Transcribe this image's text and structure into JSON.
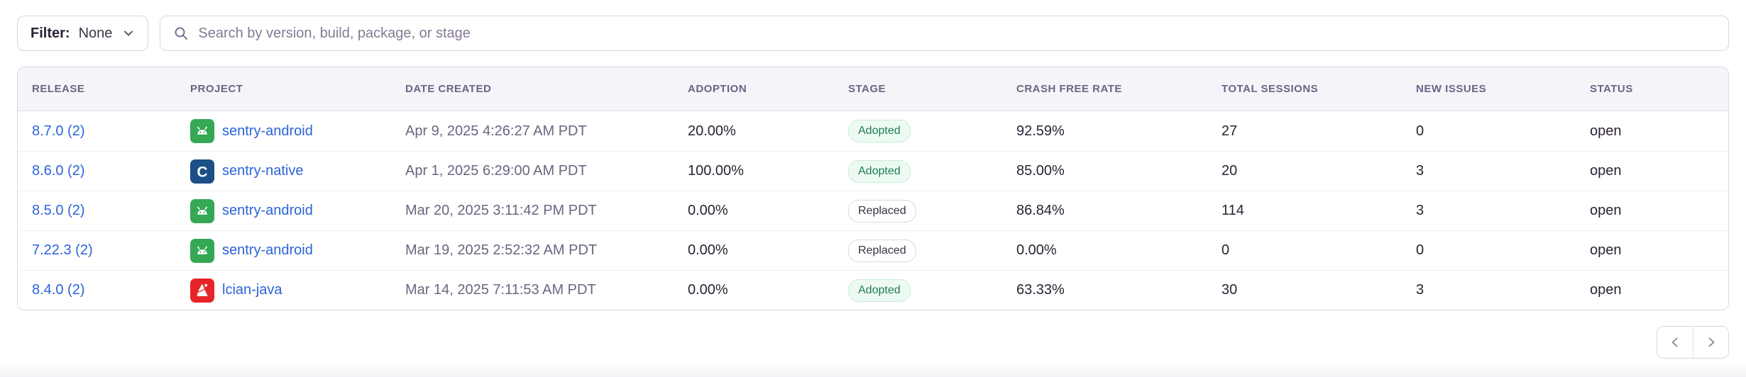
{
  "filter": {
    "label": "Filter:",
    "value": "None"
  },
  "search": {
    "placeholder": "Search by version, build, package, or stage"
  },
  "table": {
    "columns": [
      "RELEASE",
      "PROJECT",
      "DATE CREATED",
      "ADOPTION",
      "STAGE",
      "CRASH FREE RATE",
      "TOTAL SESSIONS",
      "NEW ISSUES",
      "STATUS"
    ],
    "rows": [
      {
        "release": "8.7.0 (2)",
        "project": "sentry-android",
        "project_icon": "android-icon",
        "date_created": "Apr 9, 2025 4:26:27 AM PDT",
        "adoption": "20.00%",
        "stage": "Adopted",
        "stage_variant": "success",
        "crash_free_rate": "92.59%",
        "total_sessions": "27",
        "new_issues": "0",
        "new_issues_is_link": false,
        "status": "open"
      },
      {
        "release": "8.6.0 (2)",
        "project": "sentry-native",
        "project_icon": "c-icon",
        "date_created": "Apr 1, 2025 6:29:00 AM PDT",
        "adoption": "100.00%",
        "stage": "Adopted",
        "stage_variant": "success",
        "crash_free_rate": "85.00%",
        "total_sessions": "20",
        "new_issues": "3",
        "new_issues_is_link": true,
        "status": "open"
      },
      {
        "release": "8.5.0 (2)",
        "project": "sentry-android",
        "project_icon": "android-icon",
        "date_created": "Mar 20, 2025 3:11:42 PM PDT",
        "adoption": "0.00%",
        "stage": "Replaced",
        "stage_variant": "neutral",
        "crash_free_rate": "86.84%",
        "total_sessions": "114",
        "new_issues": "3",
        "new_issues_is_link": true,
        "status": "open"
      },
      {
        "release": "7.22.3 (2)",
        "project": "sentry-android",
        "project_icon": "android-icon",
        "date_created": "Mar 19, 2025 2:52:32 AM PDT",
        "adoption": "0.00%",
        "stage": "Replaced",
        "stage_variant": "neutral",
        "crash_free_rate": "0.00%",
        "total_sessions": "0",
        "new_issues": "0",
        "new_issues_is_link": false,
        "status": "open"
      },
      {
        "release": "8.4.0 (2)",
        "project": "lcian-java",
        "project_icon": "java-icon",
        "date_created": "Mar 14, 2025 7:11:53 AM PDT",
        "adoption": "0.00%",
        "stage": "Adopted",
        "stage_variant": "success",
        "crash_free_rate": "63.33%",
        "total_sessions": "30",
        "new_issues": "3",
        "new_issues_is_link": true,
        "status": "open"
      }
    ]
  },
  "pagination": {
    "previous_icon": "chevron-left-icon",
    "next_icon": "chevron-right-icon"
  },
  "colors": {
    "link": "#2b63d8",
    "adopted_text": "#1f7d4f",
    "adopted_bg": "#edfaf3",
    "adopted_border": "#c9ecd9",
    "replaced_text": "#3a3244",
    "replaced_border": "#dcd8e2",
    "header_text": "#6f6287",
    "body_text": "#2b2233",
    "date_text": "#6e6480",
    "android_green": "#34a853",
    "c_blue": "#1b4f85",
    "java_red": "#e62429"
  }
}
